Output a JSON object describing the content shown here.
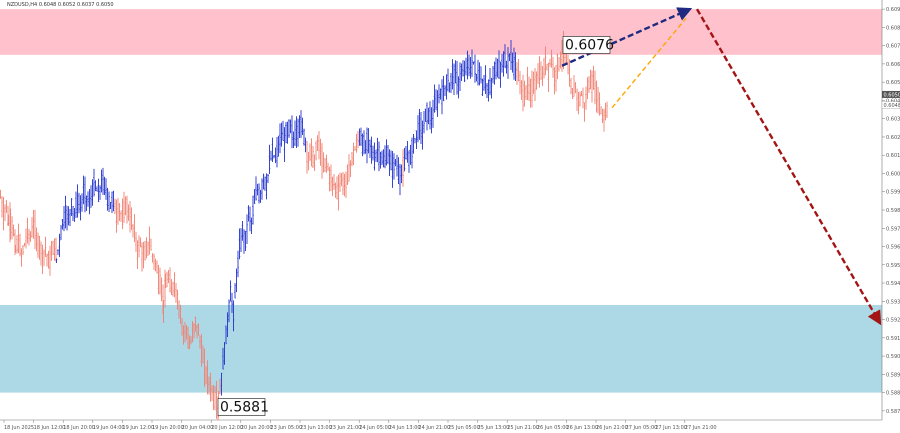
{
  "chart_data": {
    "type": "candlestick",
    "symbol_line": "NZDUSD,H4  0.6048 0.6052 0.6037 0.6050",
    "zones": [
      {
        "name": "resistance",
        "from": 0.6072,
        "to": 0.6097,
        "color": "#ffc1cc"
      },
      {
        "name": "support",
        "from": 0.5887,
        "to": 0.5935,
        "color": "#add8e6"
      }
    ],
    "ylim": [
      0.5872,
      0.6102
    ],
    "y_ticks": [
      "0.6097",
      "0.6087",
      "0.6077",
      "0.6067",
      "0.6057",
      "0.6047",
      "0.6037",
      "0.6027",
      "0.6017",
      "0.6007",
      "0.5997",
      "0.5987",
      "0.5977",
      "0.5967",
      "0.5957",
      "0.5947",
      "0.5937",
      "0.5927",
      "0.5917",
      "0.5907",
      "0.5897",
      "0.5887",
      "0.5877"
    ],
    "current_price": "0.6050",
    "current_price_2": "0.6048",
    "x_ticks": [
      "18 Jun 2025",
      "18 Jun 12:00",
      "18 Jun 20:00",
      "19 Jun 04:00",
      "19 Jun 12:00",
      "19 Jun 20:00",
      "20 Jun 04:00",
      "20 Jun 12:00",
      "20 Jun 20:00",
      "23 Jun 05:00",
      "23 Jun 13:00",
      "23 Jun 21:00",
      "24 Jun 05:00",
      "24 Jun 13:00",
      "24 Jun 21:00",
      "25 Jun 05:00",
      "25 Jun 13:00",
      "25 Jun 21:00",
      "26 Jun 05:00",
      "26 Jun 13:00",
      "26 Jun 21:00",
      "27 Jun 05:00",
      "27 Jun 13:00",
      "27 Jun 21:00"
    ],
    "annotations": [
      {
        "text": "0.6076",
        "value": 0.6076
      },
      {
        "text": "0.5881",
        "value": 0.5881
      }
    ],
    "wave_colors": {
      "bull": "#2233cc",
      "bear": "#f08070"
    },
    "forecast": [
      {
        "name": "up-arrow",
        "color": "#1f2a80",
        "style": "dashed",
        "from": 0.6066,
        "to": 0.6097
      },
      {
        "name": "alt-dash",
        "color": "#ffa500",
        "style": "dashed",
        "from": 0.6043,
        "to": 0.6092
      },
      {
        "name": "down-arrow",
        "color": "#a31515",
        "style": "dashed",
        "from": 0.6097,
        "to": 0.5925
      }
    ],
    "path": [
      [
        0,
        0.5994
      ],
      [
        3,
        0.5985
      ],
      [
        6,
        0.599
      ],
      [
        8,
        0.598
      ],
      [
        10,
        0.5982
      ],
      [
        13,
        0.5975
      ],
      [
        15,
        0.5965
      ],
      [
        18,
        0.597
      ],
      [
        21,
        0.5962
      ],
      [
        24,
        0.5968
      ],
      [
        27,
        0.5975
      ],
      [
        30,
        0.5972
      ],
      [
        33,
        0.598
      ],
      [
        36,
        0.597
      ],
      [
        39,
        0.5968
      ],
      [
        42,
        0.5962
      ],
      [
        45,
        0.5966
      ],
      [
        48,
        0.5958
      ],
      [
        51,
        0.5962
      ],
      [
        54,
        0.5968
      ],
      [
        56,
        0.596
      ],
      [
        59,
        0.597
      ],
      [
        62,
        0.598
      ],
      [
        65,
        0.5986
      ],
      [
        68,
        0.5982
      ],
      [
        71,
        0.599
      ],
      [
        74,
        0.5985
      ],
      [
        77,
        0.5992
      ],
      [
        80,
        0.5988
      ],
      [
        83,
        0.5996
      ],
      [
        86,
        0.5994
      ],
      [
        89,
        0.599
      ],
      [
        92,
        0.5998
      ],
      [
        95,
        0.6
      ],
      [
        98,
        0.5995
      ],
      [
        101,
        0.6002
      ],
      [
        104,
        0.6
      ],
      [
        107,
        0.5995
      ],
      [
        110,
        0.599
      ],
      [
        113,
        0.5992
      ],
      [
        116,
        0.5985
      ],
      [
        119,
        0.5988
      ],
      [
        122,
        0.5982
      ],
      [
        125,
        0.599
      ],
      [
        128,
        0.5986
      ],
      [
        131,
        0.598
      ],
      [
        134,
        0.5975
      ],
      [
        137,
        0.5965
      ],
      [
        140,
        0.5968
      ],
      [
        143,
        0.596
      ],
      [
        146,
        0.5965
      ],
      [
        149,
        0.597
      ],
      [
        152,
        0.5962
      ],
      [
        155,
        0.5958
      ],
      [
        158,
        0.595
      ],
      [
        161,
        0.5945
      ],
      [
        163,
        0.5935
      ],
      [
        165,
        0.5945
      ],
      [
        168,
        0.595
      ],
      [
        171,
        0.5942
      ],
      [
        174,
        0.5948
      ],
      [
        177,
        0.5938
      ],
      [
        180,
        0.593
      ],
      [
        183,
        0.592
      ],
      [
        186,
        0.5922
      ],
      [
        189,
        0.5912
      ],
      [
        192,
        0.5918
      ],
      [
        195,
        0.5925
      ],
      [
        198,
        0.592
      ],
      [
        201,
        0.591
      ],
      [
        204,
        0.59
      ],
      [
        207,
        0.5895
      ],
      [
        210,
        0.589
      ],
      [
        213,
        0.5885
      ],
      [
        216,
        0.5883
      ],
      [
        218,
        0.5881
      ],
      [
        221,
        0.5895
      ],
      [
        224,
        0.591
      ],
      [
        227,
        0.5925
      ],
      [
        230,
        0.5942
      ],
      [
        233,
        0.593
      ],
      [
        236,
        0.595
      ],
      [
        239,
        0.5965
      ],
      [
        242,
        0.5975
      ],
      [
        245,
        0.597
      ],
      [
        248,
        0.5985
      ],
      [
        251,
        0.598
      ],
      [
        254,
        0.5992
      ],
      [
        257,
        0.5998
      ],
      [
        260,
        0.5995
      ],
      [
        263,
        0.6005
      ],
      [
        266,
        0.6
      ],
      [
        269,
        0.6012
      ],
      [
        272,
        0.6018
      ],
      [
        275,
        0.6015
      ],
      [
        278,
        0.6022
      ],
      [
        281,
        0.6028
      ],
      [
        284,
        0.6025
      ],
      [
        287,
        0.603
      ],
      [
        290,
        0.6032
      ],
      [
        293,
        0.6026
      ],
      [
        296,
        0.603
      ],
      [
        299,
        0.6034
      ],
      [
        302,
        0.6032
      ],
      [
        305,
        0.6024
      ],
      [
        308,
        0.6015
      ],
      [
        311,
        0.602
      ],
      [
        314,
        0.6012
      ],
      [
        317,
        0.6025
      ],
      [
        320,
        0.6018
      ],
      [
        323,
        0.601
      ],
      [
        326,
        0.6014
      ],
      [
        329,
        0.6006
      ],
      [
        332,
        0.6002
      ],
      [
        335,
        0.6
      ],
      [
        338,
        0.5998
      ],
      [
        341,
        0.6004
      ],
      [
        344,
        0.6
      ],
      [
        347,
        0.6005
      ],
      [
        350,
        0.6012
      ],
      [
        353,
        0.6018
      ],
      [
        356,
        0.6022
      ],
      [
        359,
        0.6028
      ],
      [
        362,
        0.6024
      ],
      [
        365,
        0.602
      ],
      [
        368,
        0.6026
      ],
      [
        371,
        0.602
      ],
      [
        374,
        0.6015
      ],
      [
        377,
        0.602
      ],
      [
        380,
        0.6016
      ],
      [
        383,
        0.6012
      ],
      [
        386,
        0.6018
      ],
      [
        389,
        0.6014
      ],
      [
        392,
        0.601
      ],
      [
        395,
        0.6013
      ],
      [
        398,
        0.6008
      ],
      [
        401,
        0.6006
      ],
      [
        404,
        0.6012
      ],
      [
        407,
        0.6018
      ],
      [
        410,
        0.6015
      ],
      [
        413,
        0.6024
      ],
      [
        416,
        0.6028
      ],
      [
        419,
        0.6034
      ],
      [
        422,
        0.603
      ],
      [
        425,
        0.6038
      ],
      [
        428,
        0.604
      ],
      [
        431,
        0.6036
      ],
      [
        434,
        0.6044
      ],
      [
        437,
        0.6046
      ],
      [
        440,
        0.6052
      ],
      [
        443,
        0.605
      ],
      [
        446,
        0.6058
      ],
      [
        449,
        0.6054
      ],
      [
        452,
        0.6062
      ],
      [
        455,
        0.606
      ],
      [
        458,
        0.6056
      ],
      [
        461,
        0.6064
      ],
      [
        464,
        0.606
      ],
      [
        467,
        0.6068
      ],
      [
        470,
        0.6064
      ],
      [
        473,
        0.6068
      ],
      [
        476,
        0.606
      ],
      [
        479,
        0.6062
      ],
      [
        482,
        0.6055
      ],
      [
        485,
        0.6058
      ],
      [
        488,
        0.6052
      ],
      [
        491,
        0.6056
      ],
      [
        494,
        0.6062
      ],
      [
        497,
        0.6066
      ],
      [
        500,
        0.6064
      ],
      [
        503,
        0.607
      ],
      [
        506,
        0.6066
      ],
      [
        509,
        0.6072
      ],
      [
        512,
        0.6068
      ],
      [
        515,
        0.6066
      ],
      [
        518,
        0.606
      ],
      [
        521,
        0.6054
      ],
      [
        524,
        0.605
      ],
      [
        527,
        0.6055
      ],
      [
        530,
        0.605
      ],
      [
        533,
        0.6056
      ],
      [
        536,
        0.6058
      ],
      [
        539,
        0.6062
      ],
      [
        542,
        0.606
      ],
      [
        545,
        0.6068
      ],
      [
        548,
        0.6064
      ],
      [
        551,
        0.607
      ],
      [
        554,
        0.606
      ],
      [
        557,
        0.6066
      ],
      [
        560,
        0.607
      ],
      [
        563,
        0.6074
      ],
      [
        566,
        0.607
      ],
      [
        569,
        0.6058
      ],
      [
        572,
        0.605
      ],
      [
        575,
        0.6055
      ],
      [
        578,
        0.6046
      ],
      [
        581,
        0.605
      ],
      [
        584,
        0.6044
      ],
      [
        587,
        0.6052
      ],
      [
        590,
        0.6058
      ],
      [
        593,
        0.6056
      ],
      [
        596,
        0.605
      ],
      [
        599,
        0.6046
      ],
      [
        602,
        0.6038
      ],
      [
        605,
        0.604
      ],
      [
        608,
        0.6044
      ]
    ],
    "bull_ranges": [
      [
        56,
        113
      ],
      [
        221,
        305
      ],
      [
        359,
        401
      ],
      [
        404,
        515
      ]
    ]
  }
}
